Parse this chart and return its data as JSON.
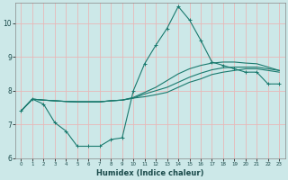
{
  "xlabel": "Humidex (Indice chaleur)",
  "background_color": "#cce8e8",
  "grid_color": "#e8b8b8",
  "line_color": "#1a7a6e",
  "xlim": [
    -0.5,
    23.5
  ],
  "ylim": [
    6,
    10.6
  ],
  "yticks": [
    6,
    7,
    8,
    9,
    10
  ],
  "xticks": [
    0,
    1,
    2,
    3,
    4,
    5,
    6,
    7,
    8,
    9,
    10,
    11,
    12,
    13,
    14,
    15,
    16,
    17,
    18,
    19,
    20,
    21,
    22,
    23
  ],
  "series": {
    "line1_x": [
      0,
      1,
      2,
      3,
      4,
      5,
      6,
      7,
      8,
      9,
      10,
      11,
      12,
      13,
      14,
      15,
      16,
      17,
      18,
      19,
      20,
      21,
      22,
      23
    ],
    "line1_y": [
      7.4,
      7.75,
      7.6,
      7.05,
      6.8,
      6.35,
      6.35,
      6.35,
      6.55,
      6.6,
      8.0,
      8.8,
      9.35,
      9.85,
      10.5,
      10.1,
      9.5,
      8.85,
      8.75,
      8.65,
      8.55,
      8.55,
      8.2,
      8.2
    ],
    "line2_x": [
      0,
      1,
      2,
      3,
      4,
      5,
      6,
      7,
      8,
      9,
      10,
      11,
      12,
      13,
      14,
      15,
      16,
      17,
      18,
      19,
      20,
      21,
      22,
      23
    ],
    "line2_y": [
      7.4,
      7.75,
      7.72,
      7.7,
      7.68,
      7.67,
      7.67,
      7.67,
      7.7,
      7.72,
      7.78,
      7.82,
      7.88,
      7.95,
      8.1,
      8.25,
      8.35,
      8.48,
      8.55,
      8.6,
      8.65,
      8.65,
      8.6,
      8.55
    ],
    "line3_x": [
      0,
      1,
      2,
      3,
      4,
      5,
      6,
      7,
      8,
      9,
      10,
      11,
      12,
      13,
      14,
      15,
      16,
      17,
      18,
      19,
      20,
      21,
      22,
      23
    ],
    "line3_y": [
      7.4,
      7.75,
      7.72,
      7.7,
      7.68,
      7.67,
      7.67,
      7.67,
      7.7,
      7.72,
      7.78,
      7.9,
      8.0,
      8.1,
      8.25,
      8.4,
      8.52,
      8.62,
      8.68,
      8.7,
      8.7,
      8.7,
      8.65,
      8.6
    ],
    "line4_x": [
      0,
      1,
      2,
      3,
      4,
      5,
      6,
      7,
      8,
      9,
      10,
      11,
      12,
      13,
      14,
      15,
      16,
      17,
      18,
      19,
      20,
      21,
      22,
      23
    ],
    "line4_y": [
      7.4,
      7.75,
      7.72,
      7.7,
      7.68,
      7.67,
      7.67,
      7.67,
      7.7,
      7.72,
      7.8,
      7.95,
      8.1,
      8.3,
      8.5,
      8.65,
      8.75,
      8.82,
      8.85,
      8.85,
      8.82,
      8.8,
      8.7,
      8.6
    ]
  }
}
